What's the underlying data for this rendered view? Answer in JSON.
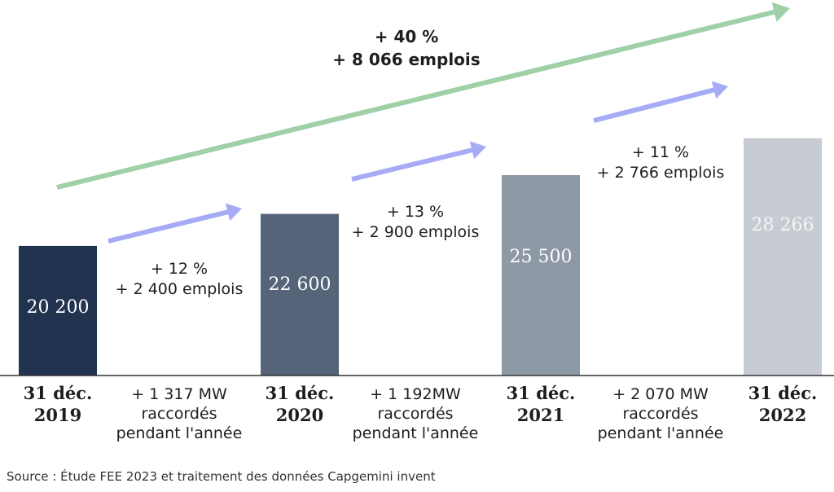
{
  "chart_data": {
    "type": "bar",
    "categories": [
      "31 déc. 2019",
      "31 déc. 2020",
      "31 déc. 2021",
      "31 déc. 2022"
    ],
    "category_lines": [
      [
        "31 déc.",
        "2019"
      ],
      [
        "31 déc.",
        "2020"
      ],
      [
        "31 déc.",
        "2021"
      ],
      [
        "31 déc.",
        "2022"
      ]
    ],
    "values": [
      20200,
      22600,
      25500,
      28266
    ],
    "value_labels": [
      "20 200",
      "22 600",
      "25 500",
      "28 266"
    ],
    "bar_colors": [
      "#22334f",
      "#556479",
      "#8e99a6",
      "#c7cbd2"
    ],
    "value_label_colors": [
      "#ffffff",
      "#ffffff",
      "#ffffff",
      "#f4f5f7"
    ],
    "increments": [
      {
        "growth_lines": [
          "+ 12 %",
          "+ 2 400 emplois"
        ],
        "mw_lines": [
          "+  1 317 MW",
          "raccordés",
          "pendant l'année"
        ]
      },
      {
        "growth_lines": [
          "+ 13 %",
          "+ 2 900 emplois"
        ],
        "mw_lines": [
          "+ 1 192MW",
          "raccordés",
          "pendant l'année"
        ]
      },
      {
        "growth_lines": [
          "+ 11 %",
          "+ 2 766 emplois"
        ],
        "mw_lines": [
          "+ 2 070 MW",
          "raccordés",
          "pendant l'année"
        ]
      }
    ],
    "total_growth_lines": [
      "+ 40 %",
      "+ 8 066 emplois"
    ],
    "colors": {
      "small_arrow": "#a5acf5",
      "big_arrow": "#9fd0a8",
      "axis": "#333333",
      "text": "#1e1e1e"
    },
    "title": "",
    "xlabel": "",
    "ylabel": "",
    "legend": "none",
    "grid": false
  },
  "source": "Source : Étude FEE 2023 et traitement des données Capgemini invent"
}
